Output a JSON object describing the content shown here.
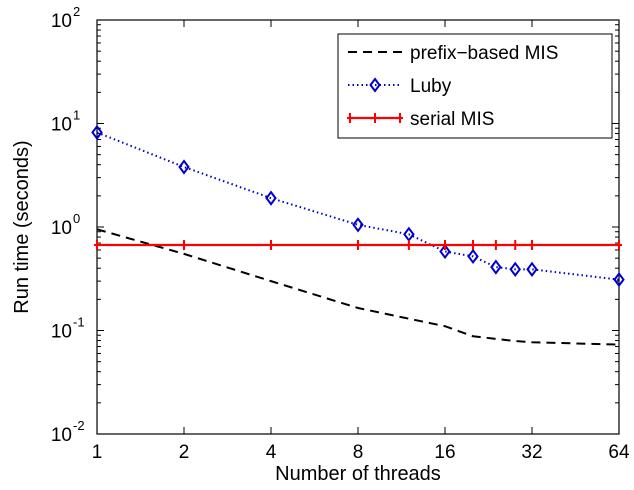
{
  "chart_data": {
    "type": "line",
    "title": "",
    "xlabel": "Number of threads",
    "ylabel": "Run time (seconds)",
    "x_scale": "log2",
    "y_scale": "log10",
    "xlim": [
      1,
      64
    ],
    "ylim": [
      0.01,
      100
    ],
    "x_ticks": [
      1,
      2,
      4,
      8,
      16,
      32,
      64
    ],
    "x_tick_labels": [
      "1",
      "2",
      "4",
      "8",
      "16",
      "32",
      "64"
    ],
    "y_ticks": [
      0.01,
      0.1,
      1,
      10,
      100
    ],
    "y_tick_base": "10",
    "y_tick_exponents": [
      "-2",
      "-1",
      "0",
      "1",
      "2"
    ],
    "grid": false,
    "legend_position": "top-right",
    "series": [
      {
        "name": "prefix−based MIS",
        "style": "dashed",
        "color": "#000000",
        "marker": "none",
        "x": [
          1,
          2,
          4,
          8,
          12,
          16,
          20,
          24,
          28,
          32,
          64
        ],
        "y": [
          0.95,
          0.55,
          0.3,
          0.165,
          0.13,
          0.11,
          0.088,
          0.083,
          0.079,
          0.077,
          0.073
        ]
      },
      {
        "name": "Luby",
        "style": "dotted",
        "color": "#0000cc",
        "marker": "diamond",
        "x": [
          1,
          2,
          4,
          8,
          12,
          16,
          20,
          24,
          28,
          32,
          64
        ],
        "y": [
          8.2,
          3.8,
          1.9,
          1.05,
          0.85,
          0.58,
          0.52,
          0.41,
          0.39,
          0.39,
          0.31
        ]
      },
      {
        "name": "serial MIS",
        "style": "solid",
        "color": "#ff0000",
        "marker": "plus",
        "x": [
          1,
          2,
          4,
          8,
          12,
          16,
          20,
          24,
          28,
          32,
          64
        ],
        "y": [
          0.67,
          0.67,
          0.67,
          0.67,
          0.67,
          0.67,
          0.67,
          0.67,
          0.67,
          0.67,
          0.67
        ]
      }
    ]
  }
}
